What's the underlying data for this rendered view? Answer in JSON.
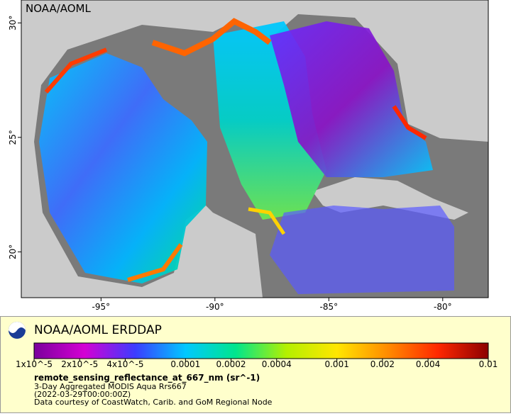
{
  "map": {
    "watermark": "NOAA/AOML",
    "xlim": [
      -98.5,
      -78
    ],
    "ylim": [
      18,
      31
    ],
    "xticks": [
      {
        "value": -95,
        "label": "-95°"
      },
      {
        "value": -90,
        "label": "-90°"
      },
      {
        "value": -85,
        "label": "-85°"
      },
      {
        "value": -80,
        "label": "-80°"
      }
    ],
    "yticks": [
      {
        "value": 20,
        "label": "20°"
      },
      {
        "value": 25,
        "label": "25°"
      },
      {
        "value": 30,
        "label": "30°"
      }
    ]
  },
  "legend": {
    "title": "NOAA/AOML ERDDAP",
    "colorbar": {
      "scale": "log",
      "lim": [
        1e-05,
        0.01
      ],
      "colors": [
        "#7a009c",
        "#d400d4",
        "#3c3cff",
        "#00c8ff",
        "#00e68c",
        "#b4f000",
        "#ffe600",
        "#ff8c00",
        "#ff2800",
        "#8c0000"
      ],
      "ticks": [
        {
          "value": 1e-05,
          "label": "1x10^-5"
        },
        {
          "value": 2e-05,
          "label": "2x10^-5"
        },
        {
          "value": 4e-05,
          "label": "4x10^-5"
        },
        0.0001,
        0.0002,
        0.0004,
        0.001,
        0.002,
        0.004,
        0.01
      ]
    },
    "variable": "remote_sensing_reflectance_at_667_nm (sr^-1)",
    "lines": [
      "3-Day Aggregated MODIS Aqua Rrs667",
      "(2022-03-29T00:00:00Z)",
      "Data courtesy of CoastWatch, Carib. and GoM Regional Node"
    ]
  }
}
